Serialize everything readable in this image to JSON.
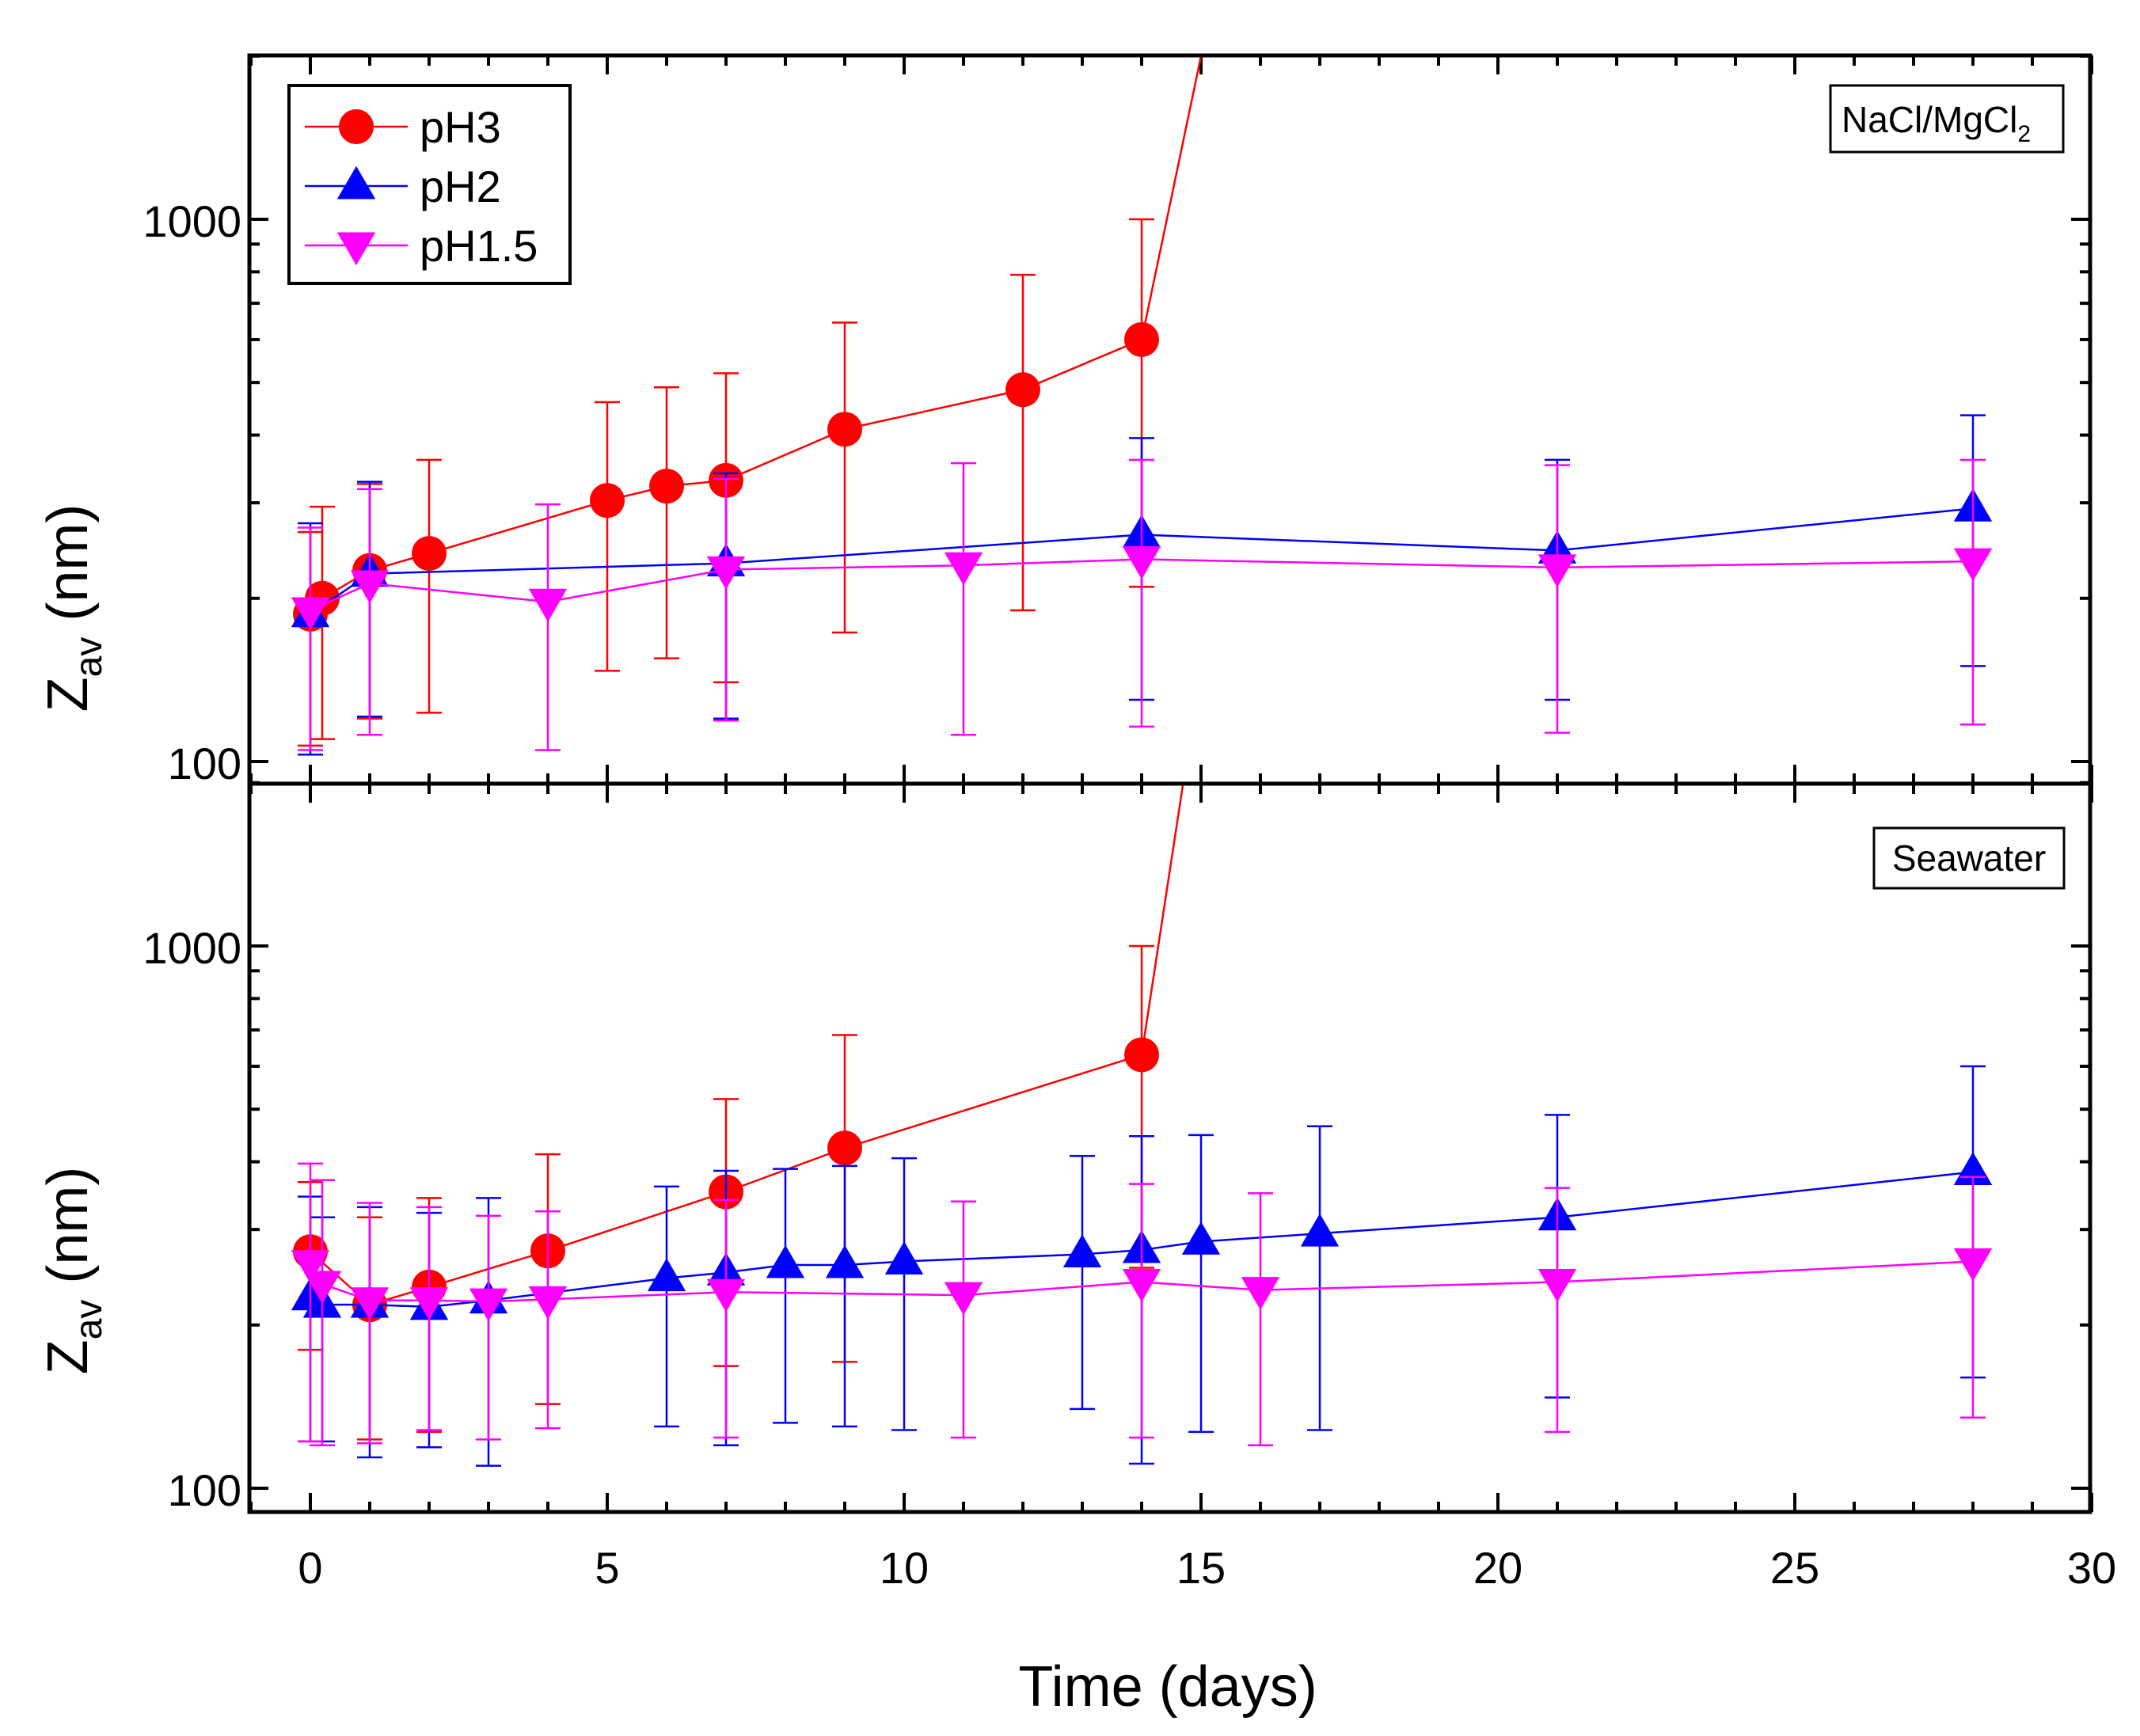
{
  "chart_data": {
    "type": "scatter",
    "xlabel": "Time (days)",
    "ylabel_main": "Z",
    "ylabel_sub": "av",
    "ylabel_unit": " (nm)",
    "x_ticks": [
      "0",
      "5",
      "10",
      "15",
      "20",
      "25",
      "30"
    ],
    "xlim": [
      -1,
      30
    ],
    "y_scale": "log",
    "legend_position": "top-left",
    "panels": [
      {
        "label": "NaCl/MgCl",
        "label_sub": "2",
        "ylim": [
          95,
          2000
        ],
        "y_ticks": [
          "100",
          "1000"
        ],
        "series": [
          {
            "name": "pH3",
            "color": "#ff0000",
            "marker": "circle",
            "points": [
              {
                "x": 0,
                "y": 187,
                "lo": 107,
                "hi": 265
              },
              {
                "x": 0.2,
                "y": 200,
                "lo": 110,
                "hi": 295
              },
              {
                "x": 1,
                "y": 225,
                "lo": 120,
                "hi": 325
              },
              {
                "x": 2,
                "y": 242,
                "lo": 123,
                "hi": 360
              },
              {
                "x": 5,
                "y": 303,
                "lo": 147,
                "hi": 460
              },
              {
                "x": 6,
                "y": 322,
                "lo": 155,
                "hi": 490
              },
              {
                "x": 7,
                "y": 330,
                "lo": 140,
                "hi": 520
              },
              {
                "x": 9,
                "y": 410,
                "lo": 173,
                "hi": 645
              },
              {
                "x": 12,
                "y": 485,
                "lo": 190,
                "hi": 790
              },
              {
                "x": 14,
                "y": 600,
                "lo": 210,
                "hi": 1000
              }
            ],
            "overflow_to": {
              "x": 15,
              "y": 2000
            }
          },
          {
            "name": "pH2",
            "color": "#0000ff",
            "marker": "triangle-up",
            "points": [
              {
                "x": 0,
                "y": 187,
                "lo": 103,
                "hi": 275
              },
              {
                "x": 1,
                "y": 222,
                "lo": 121,
                "hi": 328
              },
              {
                "x": 7,
                "y": 232,
                "lo": 120,
                "hi": 340
              },
              {
                "x": 14,
                "y": 262,
                "lo": 130,
                "hi": 395
              },
              {
                "x": 21,
                "y": 245,
                "lo": 130,
                "hi": 360
              },
              {
                "x": 28,
                "y": 293,
                "lo": 150,
                "hi": 435
              }
            ]
          },
          {
            "name": "pH1.5",
            "color": "#ff00ff",
            "marker": "triangle-down",
            "points": [
              {
                "x": 0,
                "y": 190,
                "lo": 105,
                "hi": 270
              },
              {
                "x": 1,
                "y": 213,
                "lo": 112,
                "hi": 318
              },
              {
                "x": 4,
                "y": 197,
                "lo": 105,
                "hi": 298
              },
              {
                "x": 7,
                "y": 226,
                "lo": 119,
                "hi": 332
              },
              {
                "x": 11,
                "y": 230,
                "lo": 112,
                "hi": 355
              },
              {
                "x": 14,
                "y": 236,
                "lo": 116,
                "hi": 360
              },
              {
                "x": 21,
                "y": 228,
                "lo": 113,
                "hi": 352
              },
              {
                "x": 28,
                "y": 234,
                "lo": 117,
                "hi": 360
              }
            ]
          }
        ]
      },
      {
        "label": "Seawater",
        "ylim": [
          95,
          2000
        ],
        "y_ticks": [
          "100",
          "1000"
        ],
        "series": [
          {
            "name": "pH3",
            "color": "#ff0000",
            "marker": "circle",
            "points": [
              {
                "x": 0,
                "y": 273,
                "lo": 180,
                "hi": 367
              },
              {
                "x": 1,
                "y": 218,
                "lo": 123,
                "hi": 316
              },
              {
                "x": 2,
                "y": 235,
                "lo": 127,
                "hi": 343
              },
              {
                "x": 4,
                "y": 274,
                "lo": 143,
                "hi": 413
              },
              {
                "x": 7,
                "y": 352,
                "lo": 168,
                "hi": 522
              },
              {
                "x": 9,
                "y": 424,
                "lo": 171,
                "hi": 685
              },
              {
                "x": 14,
                "y": 630,
                "lo": 255,
                "hi": 1000
              }
            ],
            "overflow_to": {
              "x": 14.7,
              "y": 2000
            }
          },
          {
            "name": "pH2",
            "color": "#0000ff",
            "marker": "triangle-up",
            "points": [
              {
                "x": 0,
                "y": 225,
                "lo": 122,
                "hi": 345
              },
              {
                "x": 0.2,
                "y": 218,
                "lo": 122,
                "hi": 316
              },
              {
                "x": 1,
                "y": 218,
                "lo": 114,
                "hi": 330
              },
              {
                "x": 2,
                "y": 216,
                "lo": 119,
                "hi": 322
              },
              {
                "x": 3,
                "y": 222,
                "lo": 110,
                "hi": 343
              },
              {
                "x": 6,
                "y": 244,
                "lo": 130,
                "hi": 360
              },
              {
                "x": 7,
                "y": 250,
                "lo": 120,
                "hi": 385
              },
              {
                "x": 8,
                "y": 258,
                "lo": 132,
                "hi": 388
              },
              {
                "x": 9,
                "y": 258,
                "lo": 130,
                "hi": 393
              },
              {
                "x": 10,
                "y": 262,
                "lo": 128,
                "hi": 406
              },
              {
                "x": 13,
                "y": 270,
                "lo": 140,
                "hi": 410
              },
              {
                "x": 14,
                "y": 275,
                "lo": 111,
                "hi": 446
              },
              {
                "x": 15,
                "y": 285,
                "lo": 127,
                "hi": 448
              },
              {
                "x": 17,
                "y": 295,
                "lo": 128,
                "hi": 465
              },
              {
                "x": 21,
                "y": 316,
                "lo": 147,
                "hi": 488
              },
              {
                "x": 28,
                "y": 383,
                "lo": 160,
                "hi": 600
              }
            ]
          },
          {
            "name": "pH1.5",
            "color": "#ff00ff",
            "marker": "triangle-down",
            "points": [
              {
                "x": 0,
                "y": 260,
                "lo": 122,
                "hi": 397
              },
              {
                "x": 0.2,
                "y": 238,
                "lo": 120,
                "hi": 370
              },
              {
                "x": 1,
                "y": 222,
                "lo": 121,
                "hi": 336
              },
              {
                "x": 2,
                "y": 222,
                "lo": 128,
                "hi": 330
              },
              {
                "x": 3,
                "y": 221,
                "lo": 123,
                "hi": 318
              },
              {
                "x": 4,
                "y": 223,
                "lo": 129,
                "hi": 324
              },
              {
                "x": 7,
                "y": 230,
                "lo": 124,
                "hi": 340
              },
              {
                "x": 11,
                "y": 227,
                "lo": 124,
                "hi": 338
              },
              {
                "x": 14,
                "y": 240,
                "lo": 124,
                "hi": 364
              },
              {
                "x": 16,
                "y": 232,
                "lo": 120,
                "hi": 350
              },
              {
                "x": 21,
                "y": 240,
                "lo": 127,
                "hi": 358
              },
              {
                "x": 28,
                "y": 262,
                "lo": 135,
                "hi": 375
              }
            ]
          }
        ]
      }
    ]
  }
}
